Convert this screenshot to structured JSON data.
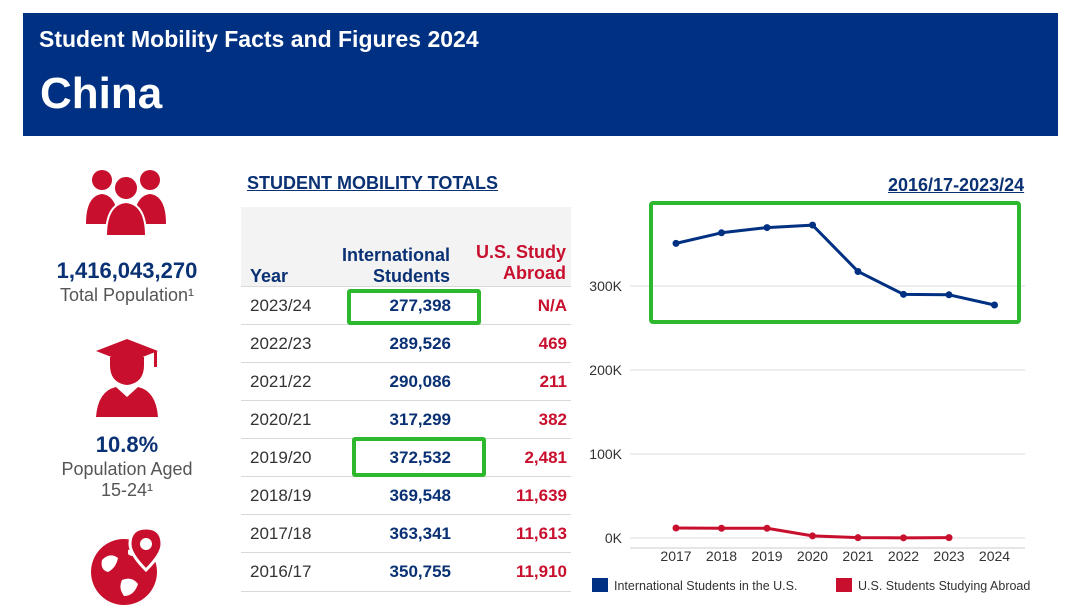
{
  "header": {
    "subtitle": "Student Mobility Facts and Figures 2024",
    "country": "China"
  },
  "stats": {
    "population_value": "1,416,043,270",
    "population_label": "Total Population¹",
    "aged_value": "10.8%",
    "aged_label_1": "Population Aged",
    "aged_label_2": "15-24¹"
  },
  "table": {
    "title": "STUDENT MOBILITY TOTALS",
    "col_year": "Year",
    "col_intl_1": "International",
    "col_intl_2": "Students",
    "col_us_1": "U.S. Study",
    "col_us_2": "Abroad",
    "rows": [
      {
        "year": "2023/24",
        "intl": "277,398",
        "us": "N/A"
      },
      {
        "year": "2022/23",
        "intl": "289,526",
        "us": "469"
      },
      {
        "year": "2021/22",
        "intl": "290,086",
        "us": "211"
      },
      {
        "year": "2020/21",
        "intl": "317,299",
        "us": "382"
      },
      {
        "year": "2019/20",
        "intl": "372,532",
        "us": "2,481"
      },
      {
        "year": "2018/19",
        "intl": "369,548",
        "us": "11,639"
      },
      {
        "year": "2017/18",
        "intl": "363,341",
        "us": "11,613"
      },
      {
        "year": "2016/17",
        "intl": "350,755",
        "us": "11,910"
      }
    ]
  },
  "colors": {
    "navy": "#003082",
    "red": "#c8102e",
    "highlight": "#2db82d"
  },
  "chart_data": {
    "type": "line",
    "title": "2016/17-2023/24",
    "categories": [
      "2017",
      "2018",
      "2019",
      "2020",
      "2021",
      "2022",
      "2023",
      "2024"
    ],
    "ylim": [
      0,
      400000
    ],
    "yticks": [
      0,
      100000,
      200000,
      300000
    ],
    "ytick_labels": [
      "0K",
      "100K",
      "200K",
      "300K"
    ],
    "grid": true,
    "legend_position": "bottom",
    "series": [
      {
        "name": "International Students in the U.S.",
        "color": "#003082",
        "values": [
          350755,
          363341,
          369548,
          372532,
          317299,
          290086,
          289526,
          277398
        ]
      },
      {
        "name": "U.S. Students Studying Abroad",
        "color": "#c8102e",
        "values": [
          11910,
          11613,
          11639,
          2481,
          382,
          211,
          469,
          null
        ]
      }
    ]
  }
}
